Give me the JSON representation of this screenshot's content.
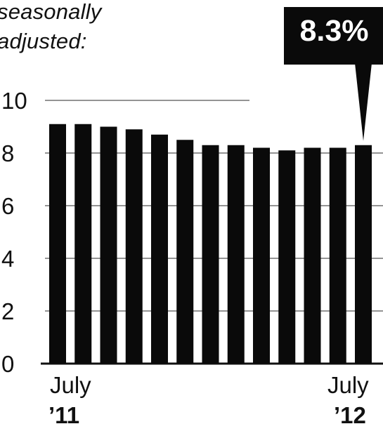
{
  "header": {
    "subtitle_line1": "seasonally",
    "subtitle_line2": "adjusted:"
  },
  "callout": {
    "text": "8.3%"
  },
  "x_labels": {
    "start_month": "July",
    "start_year": "’11",
    "end_month": "July",
    "end_year": "’12"
  },
  "colors": {
    "bar": "#0a0a0a",
    "grid": "#555555",
    "background": "#ffffff"
  },
  "chart_data": {
    "type": "bar",
    "title": "",
    "xlabel": "",
    "ylabel": "",
    "values": [
      9.1,
      9.1,
      9.0,
      8.9,
      8.7,
      8.5,
      8.3,
      8.3,
      8.2,
      8.1,
      8.2,
      8.2,
      8.3
    ],
    "ylim": [
      0,
      10
    ],
    "yticks": [
      "0",
      "2",
      "4",
      "6",
      "8",
      "10"
    ],
    "grid": true,
    "highlight": {
      "index": 12,
      "label": "8.3%"
    }
  }
}
